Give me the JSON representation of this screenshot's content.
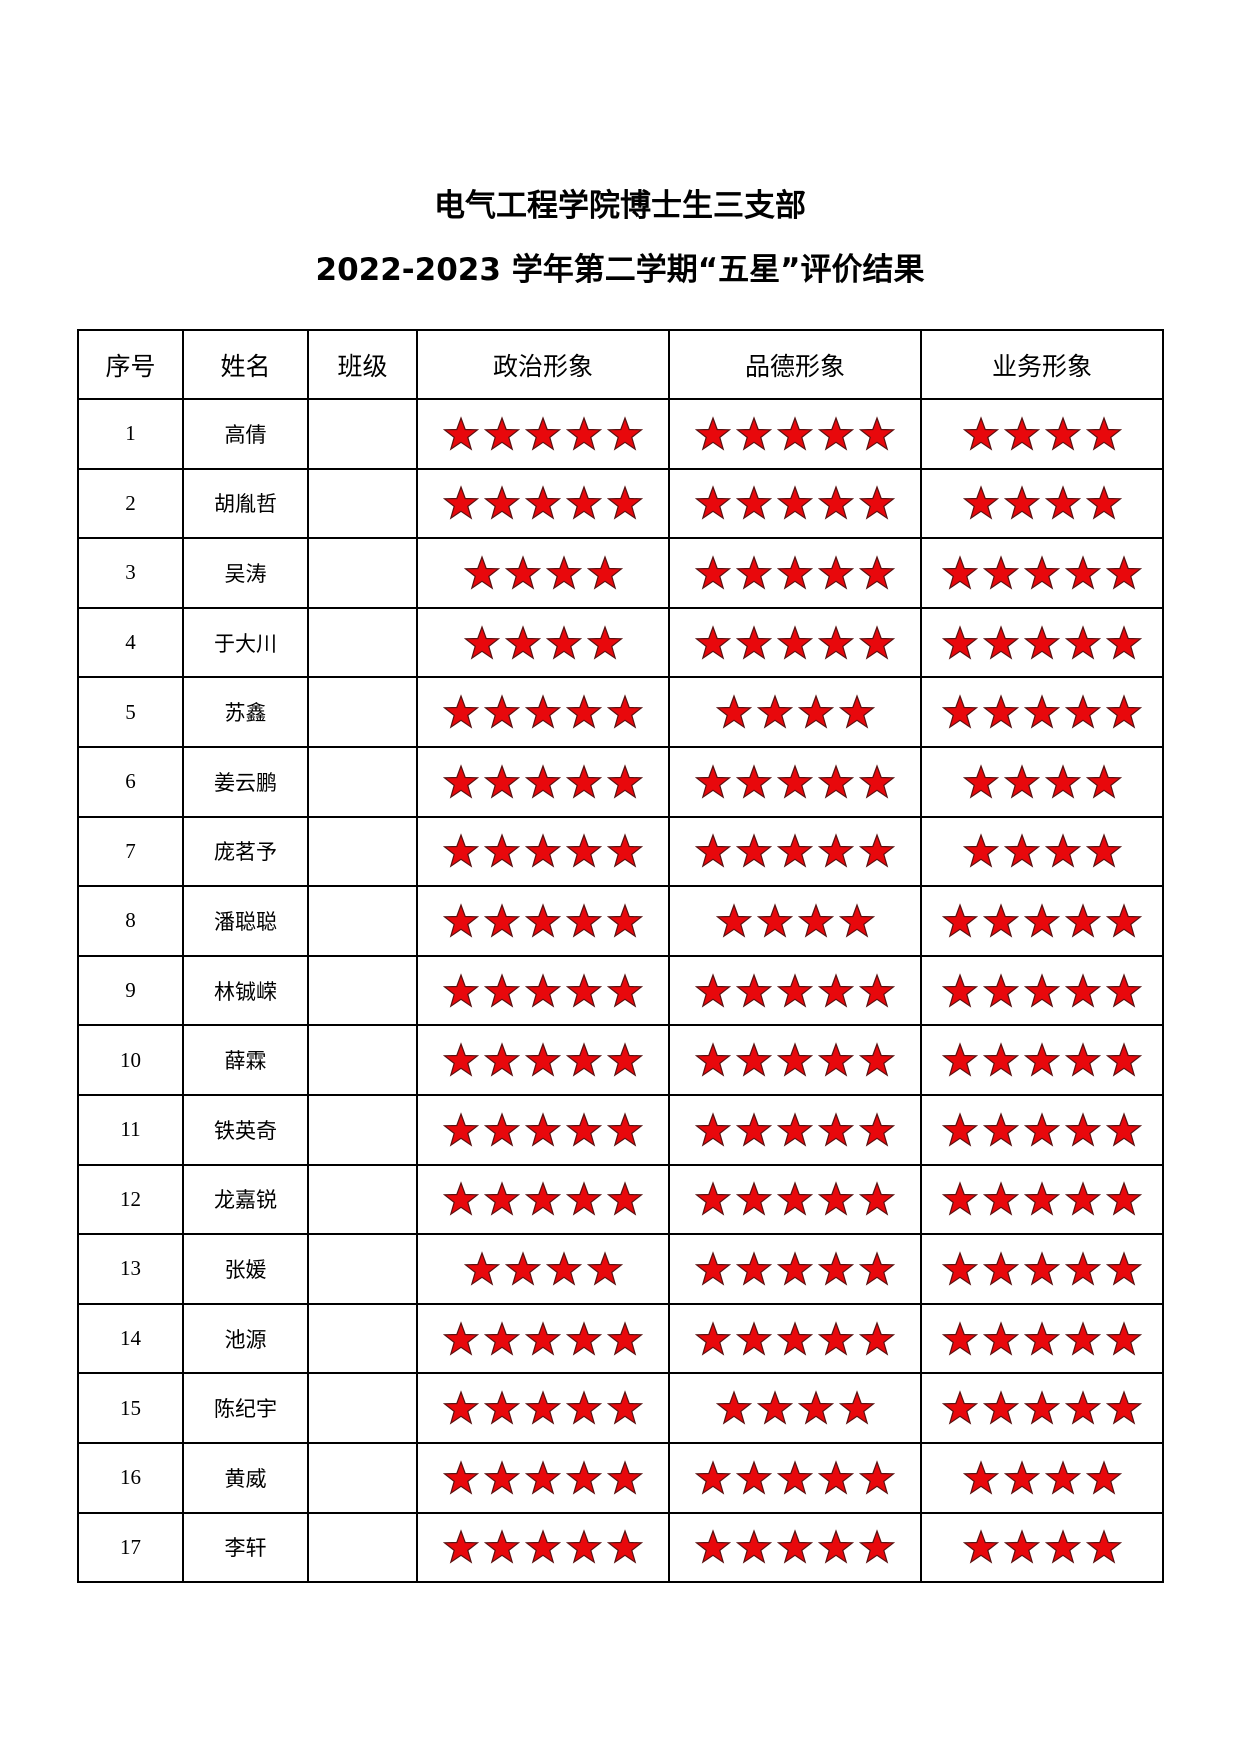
{
  "title_line1": "电气工程学院博士生三支部",
  "title_line2": "2022-2023 学年第二学期“五星”评价结果",
  "headers": [
    "序号",
    "姓名",
    "班级",
    "政治形象",
    "品德形象",
    "业务形象"
  ],
  "star_color": "#e8080c",
  "star_icon": "star-icon",
  "rows": [
    {
      "no": "1",
      "name": "高倩",
      "class": "",
      "political": 5,
      "moral": 5,
      "professional": 4
    },
    {
      "no": "2",
      "name": "胡胤哲",
      "class": "",
      "political": 5,
      "moral": 5,
      "professional": 4
    },
    {
      "no": "3",
      "name": "吴涛",
      "class": "",
      "political": 4,
      "moral": 5,
      "professional": 5
    },
    {
      "no": "4",
      "name": "于大川",
      "class": "",
      "political": 4,
      "moral": 5,
      "professional": 5
    },
    {
      "no": "5",
      "name": "苏鑫",
      "class": "",
      "political": 5,
      "moral": 4,
      "professional": 5
    },
    {
      "no": "6",
      "name": "姜云鹏",
      "class": "",
      "political": 5,
      "moral": 5,
      "professional": 4
    },
    {
      "no": "7",
      "name": "庞茗予",
      "class": "",
      "political": 5,
      "moral": 5,
      "professional": 4
    },
    {
      "no": "8",
      "name": "潘聪聪",
      "class": "",
      "political": 5,
      "moral": 4,
      "professional": 5
    },
    {
      "no": "9",
      "name": "林铖嵘",
      "class": "",
      "political": 5,
      "moral": 5,
      "professional": 5
    },
    {
      "no": "10",
      "name": "薛霖",
      "class": "",
      "political": 5,
      "moral": 5,
      "professional": 5
    },
    {
      "no": "11",
      "name": "铁英奇",
      "class": "",
      "political": 5,
      "moral": 5,
      "professional": 5
    },
    {
      "no": "12",
      "name": "龙嘉锐",
      "class": "",
      "political": 5,
      "moral": 5,
      "professional": 5
    },
    {
      "no": "13",
      "name": "张媛",
      "class": "",
      "political": 4,
      "moral": 5,
      "professional": 5
    },
    {
      "no": "14",
      "name": "池源",
      "class": "",
      "political": 5,
      "moral": 5,
      "professional": 5
    },
    {
      "no": "15",
      "name": "陈纪宇",
      "class": "",
      "political": 5,
      "moral": 4,
      "professional": 5
    },
    {
      "no": "16",
      "name": "黄威",
      "class": "",
      "political": 5,
      "moral": 5,
      "professional": 4
    },
    {
      "no": "17",
      "name": "李轩",
      "class": "",
      "political": 5,
      "moral": 5,
      "professional": 4
    }
  ]
}
